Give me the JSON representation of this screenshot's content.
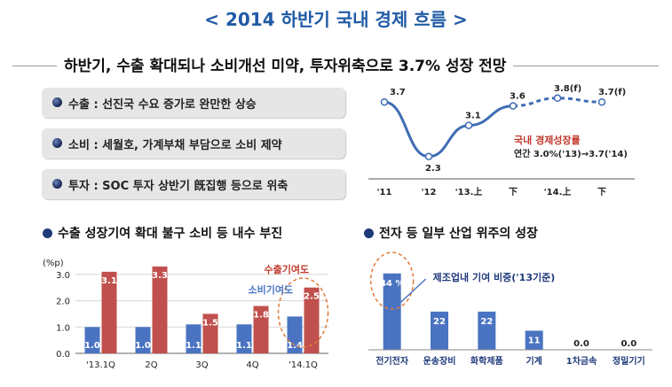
{
  "title": "< 2014 하반기 국내 경제 흐름 >",
  "subtitle": "하반기, 수출 확대되나 소비개선 미약, 투자위축으로 3.7% 성장 전망",
  "bullets": [
    {
      "label": "수출 : 선진국 수요 증가로 완만한 상승"
    },
    {
      "label": "소비 : 세월호, 가계부채 부담으로 소비 제약"
    },
    {
      "label": "투자 : SOC 투자 상반기 旣집행 등으로 위축"
    }
  ],
  "left_section_title": "수출 성장기여 확대 불구 소비 등 내수 부진",
  "right_section_title": "전자 등 일부 산업 위주의 성장",
  "chart_data": [
    {
      "type": "line",
      "categories": [
        "'11",
        "'12",
        "'13.上",
        "下",
        "'14.上",
        "下"
      ],
      "values": [
        3.7,
        2.3,
        3.1,
        3.6,
        3.8,
        3.7
      ],
      "point_labels": [
        "3.7",
        "2.3",
        "3.1",
        "3.6",
        "3.8(f)",
        "3.7(f)"
      ],
      "forecast_from_index": 3,
      "annotation_title": "국내 경제성장률",
      "annotation_text": "연간 3.0%('13)→3.7('14)",
      "color": "#3f6db3"
    },
    {
      "type": "bar",
      "unit_label": "(%p)",
      "categories": [
        "'13.1Q",
        "2Q",
        "3Q",
        "4Q",
        "'14.1Q"
      ],
      "ylim": [
        0,
        3.5
      ],
      "yticks": [
        "0.0",
        "1.0",
        "2.0",
        "3.0"
      ],
      "series": [
        {
          "name": "소비기여도",
          "values": [
            1.0,
            1.0,
            1.1,
            1.1,
            1.4
          ],
          "labels": [
            "1.0",
            "1.0",
            "1.1",
            "1.1",
            "1.4"
          ],
          "color": "#4a74c2"
        },
        {
          "name": "수출기여도",
          "values": [
            3.1,
            3.3,
            1.5,
            1.8,
            2.5
          ],
          "labels": [
            "3.1",
            "3.3",
            "1.5",
            "1.8",
            "2.5"
          ],
          "color": "#c0504d"
        }
      ],
      "highlight_index": 4
    },
    {
      "type": "bar",
      "categories": [
        "전기전자",
        "운송장비",
        "화학제품",
        "기계",
        "1차금속",
        "정밀기기"
      ],
      "values": [
        44,
        22,
        22,
        11,
        0.0,
        0.0
      ],
      "labels": [
        "44 %",
        "22",
        "22",
        "11",
        "0.0",
        "0.0"
      ],
      "ylim": [
        0,
        50
      ],
      "annotation": "제조업내 기여 비중('13기준)",
      "highlight_index": 0,
      "color": "#4a74c2"
    }
  ]
}
